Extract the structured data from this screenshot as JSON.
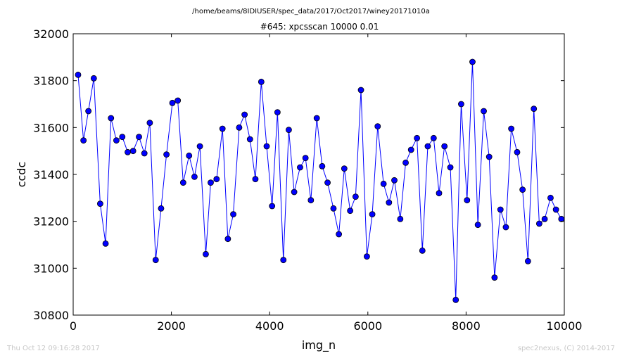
{
  "header": {
    "suptitle": "/home/beams/8IDIUSER/spec_data/2017/Oct2017/winey20171010a"
  },
  "footer": {
    "timestamp": "Thu Oct 12 09:16:28 2017",
    "credit": "spec2nexus, (C) 2014-2017"
  },
  "chart_data": {
    "type": "line",
    "title": "#645: xpcsscan 10000 0.01",
    "xlabel": "img_n",
    "ylabel": "ccdc",
    "xlim": [
      0,
      10000
    ],
    "ylim": [
      30800,
      32000
    ],
    "xticks": [
      0,
      2000,
      4000,
      6000,
      8000,
      10000
    ],
    "yticks": [
      30800,
      31000,
      31200,
      31400,
      31600,
      31800,
      32000
    ],
    "grid": false,
    "marker": "circle",
    "color": "#0000ff",
    "series": [
      {
        "x": [
          100,
          210,
          310,
          420,
          550,
          660,
          770,
          880,
          1000,
          1110,
          1220,
          1340,
          1450,
          1560,
          1680,
          1790,
          1900,
          2020,
          2130,
          2240,
          2360,
          2470,
          2580,
          2700,
          2800,
          2920,
          3040,
          3150,
          3260,
          3380,
          3490,
          3600,
          3710,
          3830,
          3940,
          4050,
          4160,
          4280,
          4390,
          4500,
          4620,
          4730,
          4840,
          4960,
          5070,
          5180,
          5300,
          5410,
          5520,
          5640,
          5750,
          5860,
          5980,
          6090,
          6200,
          6320,
          6430,
          6540,
          6660,
          6770,
          6880,
          7000,
          7110,
          7220,
          7340,
          7450,
          7560,
          7680,
          7790,
          7900,
          8020,
          8130,
          8240,
          8360,
          8470,
          8580,
          8700,
          8810,
          8920,
          9040,
          9150,
          9260,
          9380,
          9490,
          9600,
          9720,
          9830,
          9940
        ],
        "values": [
          31825,
          31545,
          31670,
          31810,
          31275,
          31105,
          31640,
          31545,
          31560,
          31495,
          31500,
          31560,
          31490,
          31620,
          31035,
          31255,
          31485,
          31705,
          31715,
          31365,
          31480,
          31390,
          31520,
          31060,
          31365,
          31380,
          31595,
          31125,
          31230,
          31600,
          31655,
          31550,
          31380,
          31795,
          31520,
          31265,
          31665,
          31035,
          31590,
          31325,
          31430,
          31470,
          31290,
          31640,
          31435,
          31365,
          31255,
          31145,
          31425,
          31245,
          31305,
          31760,
          31050,
          31230,
          31605,
          31360,
          31280,
          31375,
          31210,
          31450,
          31505,
          31555,
          31075,
          31520,
          31555,
          31320,
          31520,
          31430,
          30865,
          31700,
          31290,
          31880,
          31185,
          31670,
          31475,
          30960,
          31250,
          31175,
          31595,
          31495,
          31335,
          31030,
          31680,
          31190,
          31210,
          31300,
          31250,
          31210
        ]
      }
    ]
  }
}
